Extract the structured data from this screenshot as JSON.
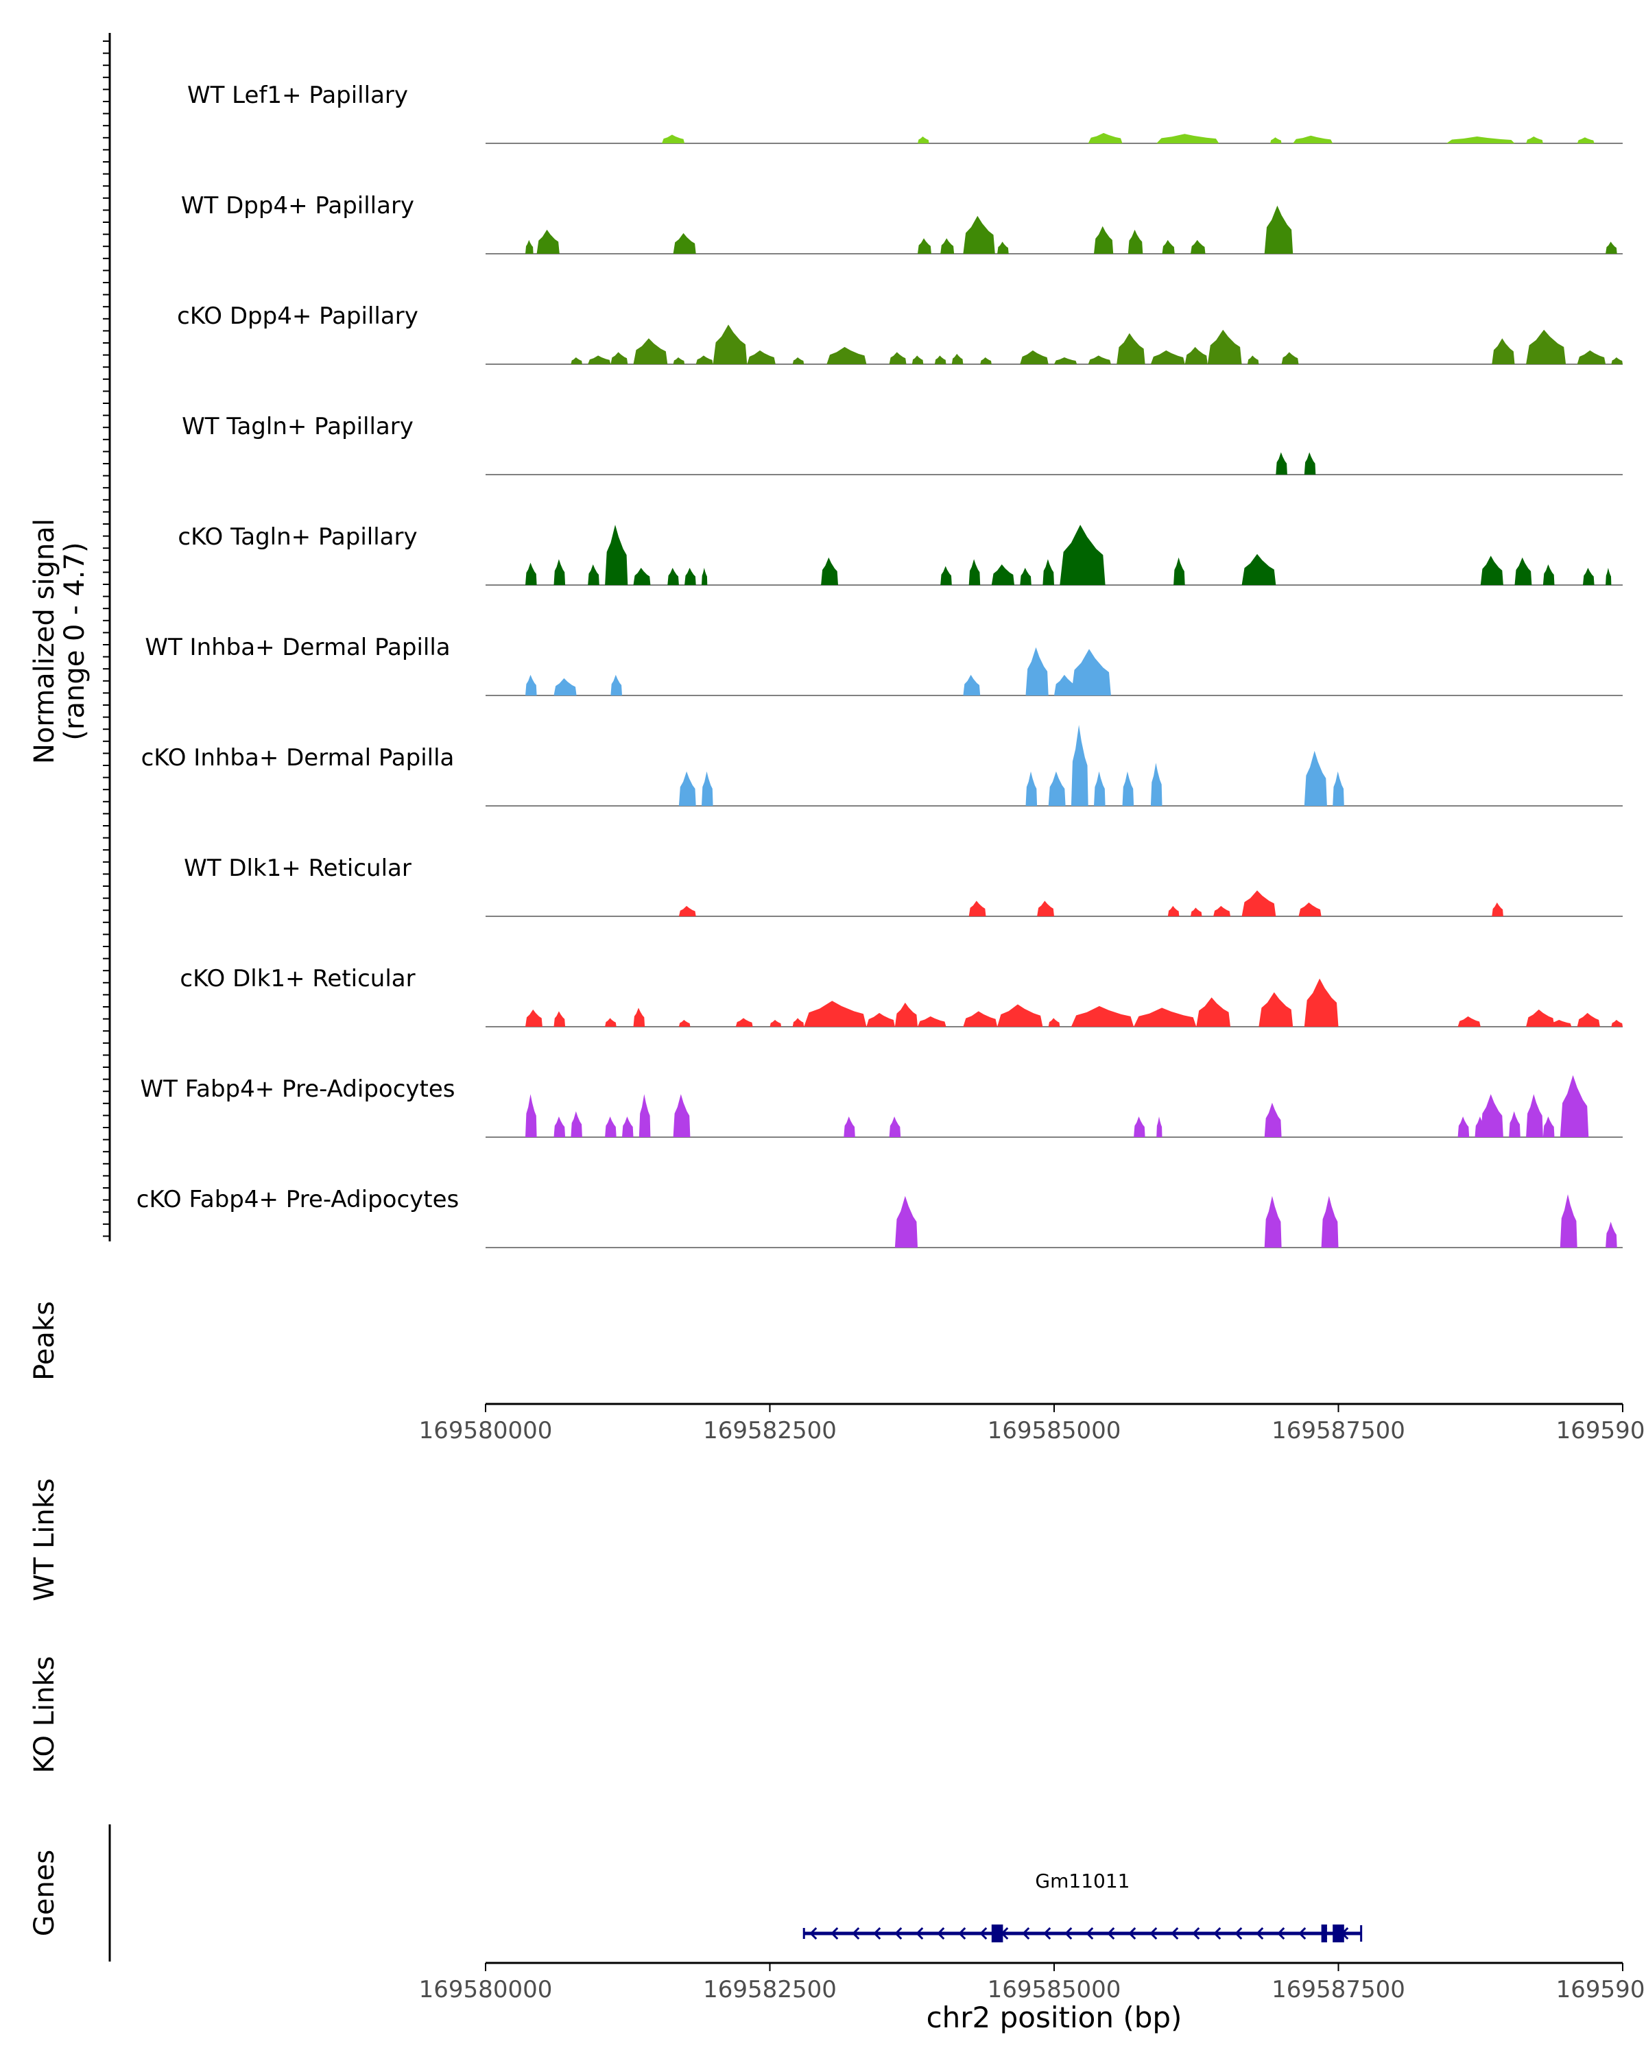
{
  "chart_data": {
    "type": "area",
    "title": "",
    "signal_axis_label_line1": "Normalized signal",
    "signal_axis_label_line2": "(range 0 - 4.7)",
    "signal_range": [
      0,
      4.7
    ],
    "xlabel": "chr2 position (bp)",
    "xlim": [
      169580000,
      169590000
    ],
    "x_ticks": [
      169580000,
      169582500,
      169585000,
      169587500,
      169590000
    ],
    "x_tick_labels": [
      "169580000",
      "169582500",
      "169585000",
      "169587500",
      "169590000"
    ],
    "tracks": [
      {
        "name": "WT Lef1+ Papillary",
        "color": "#7fd11b",
        "regions": [
          [
            169581550,
            169581750,
            0.5
          ],
          [
            169583800,
            169583900,
            0.4
          ],
          [
            169585300,
            169585600,
            0.6
          ],
          [
            169585900,
            169586450,
            0.55
          ],
          [
            169586900,
            169587000,
            0.35
          ],
          [
            169587100,
            169587450,
            0.45
          ],
          [
            169588450,
            169589050,
            0.4
          ],
          [
            169589150,
            169589300,
            0.4
          ],
          [
            169589600,
            169589750,
            0.35
          ]
        ]
      },
      {
        "name": "WT Dpp4+ Papillary",
        "color": "#3f8a06",
        "regions": [
          [
            169580350,
            169580420,
            0.8
          ],
          [
            169580450,
            169580650,
            1.4
          ],
          [
            169581650,
            169581850,
            1.2
          ],
          [
            169583800,
            169583920,
            0.9
          ],
          [
            169584000,
            169584120,
            0.9
          ],
          [
            169584200,
            169584480,
            2.2
          ],
          [
            169584500,
            169584600,
            0.7
          ],
          [
            169585350,
            169585520,
            1.6
          ],
          [
            169585650,
            169585780,
            1.4
          ],
          [
            169585950,
            169586060,
            0.8
          ],
          [
            169586200,
            169586330,
            0.8
          ],
          [
            169586850,
            169587100,
            2.8
          ],
          [
            169589850,
            169589950,
            0.7
          ]
        ]
      },
      {
        "name": "cKO Dpp4+ Papillary",
        "color": "#4b8a0a",
        "regions": [
          [
            169580750,
            169580850,
            0.4
          ],
          [
            169580900,
            169581100,
            0.5
          ],
          [
            169581100,
            169581250,
            0.7
          ],
          [
            169581300,
            169581600,
            1.5
          ],
          [
            169581650,
            169581750,
            0.4
          ],
          [
            169581850,
            169582000,
            0.5
          ],
          [
            169582000,
            169582300,
            2.3
          ],
          [
            169582300,
            169582550,
            0.8
          ],
          [
            169582700,
            169582800,
            0.4
          ],
          [
            169583000,
            169583350,
            1.0
          ],
          [
            169583550,
            169583700,
            0.7
          ],
          [
            169583750,
            169583850,
            0.5
          ],
          [
            169583950,
            169584050,
            0.5
          ],
          [
            169584100,
            169584200,
            0.6
          ],
          [
            169584350,
            169584450,
            0.4
          ],
          [
            169584700,
            169584950,
            0.8
          ],
          [
            169585000,
            169585200,
            0.4
          ],
          [
            169585300,
            169585500,
            0.5
          ],
          [
            169585550,
            169585800,
            1.8
          ],
          [
            169585850,
            169586150,
            0.8
          ],
          [
            169586150,
            169586350,
            1.0
          ],
          [
            169586350,
            169586650,
            2.0
          ],
          [
            169586700,
            169586800,
            0.5
          ],
          [
            169587000,
            169587150,
            0.7
          ],
          [
            169588850,
            169589050,
            1.5
          ],
          [
            169589150,
            169589500,
            2.0
          ],
          [
            169589600,
            169589850,
            0.8
          ],
          [
            169589900,
            169590000,
            0.4
          ]
        ]
      },
      {
        "name": "WT Tagln+ Papillary",
        "color": "#006400",
        "regions": [
          [
            169586950,
            169587050,
            1.3
          ],
          [
            169587200,
            169587300,
            1.3
          ]
        ]
      },
      {
        "name": "cKO Tagln+ Papillary",
        "color": "#006400",
        "regions": [
          [
            169580350,
            169580450,
            1.3
          ],
          [
            169580600,
            169580700,
            1.5
          ],
          [
            169580900,
            169581000,
            1.2
          ],
          [
            169581050,
            169581250,
            3.5
          ],
          [
            169581300,
            169581450,
            1.0
          ],
          [
            169581600,
            169581700,
            1.0
          ],
          [
            169581750,
            169581850,
            1.0
          ],
          [
            169581900,
            169581950,
            1.0
          ],
          [
            169582950,
            169583100,
            1.6
          ],
          [
            169584000,
            169584100,
            1.1
          ],
          [
            169584250,
            169584350,
            1.5
          ],
          [
            169584450,
            169584650,
            1.2
          ],
          [
            169584700,
            169584800,
            1.0
          ],
          [
            169584900,
            169585000,
            1.5
          ],
          [
            169585050,
            169585450,
            3.5
          ],
          [
            169586050,
            169586150,
            1.6
          ],
          [
            169586650,
            169586950,
            1.8
          ],
          [
            169588750,
            169588950,
            1.7
          ],
          [
            169589050,
            169589200,
            1.6
          ],
          [
            169589300,
            169589400,
            1.2
          ],
          [
            169589650,
            169589750,
            1.0
          ],
          [
            169589850,
            169589900,
            1.0
          ]
        ]
      },
      {
        "name": "WT Inhba+ Dermal Papilla",
        "color": "#5aa9e6",
        "regions": [
          [
            169580350,
            169580450,
            1.2
          ],
          [
            169580600,
            169580800,
            1.0
          ],
          [
            169581100,
            169581200,
            1.2
          ],
          [
            169584200,
            169584350,
            1.2
          ],
          [
            169584750,
            169584950,
            2.8
          ],
          [
            169585000,
            169585200,
            1.2
          ],
          [
            169585150,
            169585500,
            2.7
          ]
        ]
      },
      {
        "name": "cKO Inhba+ Dermal Papilla",
        "color": "#5aa9e6",
        "regions": [
          [
            169581700,
            169581850,
            2.0
          ],
          [
            169581900,
            169582000,
            2.0
          ],
          [
            169584750,
            169584850,
            2.0
          ],
          [
            169584950,
            169585100,
            2.0
          ],
          [
            169585150,
            169585300,
            4.7
          ],
          [
            169585350,
            169585450,
            2.0
          ],
          [
            169585600,
            169585700,
            2.0
          ],
          [
            169585850,
            169585950,
            2.5
          ],
          [
            169587200,
            169587400,
            3.2
          ],
          [
            169587450,
            169587550,
            2.0
          ]
        ]
      },
      {
        "name": "WT Dlk1+ Reticular",
        "color": "#ff3030",
        "regions": [
          [
            169581700,
            169581850,
            0.6
          ],
          [
            169584250,
            169584400,
            0.9
          ],
          [
            169584850,
            169585000,
            0.9
          ],
          [
            169586000,
            169586100,
            0.6
          ],
          [
            169586200,
            169586300,
            0.5
          ],
          [
            169586400,
            169586550,
            0.6
          ],
          [
            169586650,
            169586950,
            1.5
          ],
          [
            169587150,
            169587350,
            0.8
          ],
          [
            169588850,
            169588950,
            0.8
          ]
        ]
      },
      {
        "name": "cKO Dlk1+ Reticular",
        "color": "#ff3030",
        "regions": [
          [
            169580350,
            169580500,
            1.0
          ],
          [
            169580600,
            169580700,
            0.9
          ],
          [
            169581050,
            169581150,
            0.5
          ],
          [
            169581300,
            169581400,
            1.1
          ],
          [
            169581700,
            169581800,
            0.4
          ],
          [
            169582200,
            169582350,
            0.5
          ],
          [
            169582500,
            169582600,
            0.4
          ],
          [
            169582700,
            169582800,
            0.5
          ],
          [
            169582800,
            169583350,
            1.5
          ],
          [
            169583350,
            169583600,
            0.8
          ],
          [
            169583600,
            169583800,
            1.4
          ],
          [
            169583800,
            169584050,
            0.6
          ],
          [
            169584200,
            169584500,
            0.9
          ],
          [
            169584500,
            169584900,
            1.3
          ],
          [
            169584950,
            169585050,
            0.5
          ],
          [
            169585150,
            169585700,
            1.2
          ],
          [
            169585700,
            169586250,
            1.1
          ],
          [
            169586250,
            169586550,
            1.7
          ],
          [
            169586800,
            169587100,
            2.0
          ],
          [
            169587200,
            169587500,
            2.8
          ],
          [
            169588550,
            169588750,
            0.6
          ],
          [
            169589150,
            169589400,
            1.0
          ],
          [
            169589350,
            169589550,
            0.4
          ],
          [
            169589600,
            169589800,
            0.8
          ],
          [
            169589900,
            169590000,
            0.4
          ]
        ]
      },
      {
        "name": "WT Fabp4+ Pre-Adipocytes",
        "color": "#b33ee8",
        "regions": [
          [
            169580350,
            169580450,
            2.5
          ],
          [
            169580600,
            169580700,
            1.2
          ],
          [
            169580750,
            169580850,
            1.5
          ],
          [
            169581050,
            169581150,
            1.2
          ],
          [
            169581200,
            169581300,
            1.2
          ],
          [
            169581350,
            169581450,
            2.5
          ],
          [
            169581650,
            169581800,
            2.5
          ],
          [
            169583150,
            169583250,
            1.2
          ],
          [
            169583550,
            169583650,
            1.2
          ],
          [
            169585700,
            169585800,
            1.2
          ],
          [
            169585900,
            169585950,
            1.2
          ],
          [
            169586850,
            169587000,
            2.0
          ],
          [
            169588550,
            169588650,
            1.2
          ],
          [
            169588700,
            169588800,
            1.2
          ],
          [
            169588750,
            169588950,
            2.5
          ],
          [
            169589000,
            169589100,
            1.5
          ],
          [
            169589150,
            169589300,
            2.5
          ],
          [
            169589300,
            169589400,
            1.2
          ],
          [
            169589450,
            169589700,
            3.6
          ]
        ]
      },
      {
        "name": "cKO Fabp4+ Pre-Adipocytes",
        "color": "#b33ee8",
        "regions": [
          [
            169583600,
            169583800,
            3.0
          ],
          [
            169586850,
            169587000,
            3.0
          ],
          [
            169587350,
            169587500,
            3.0
          ],
          [
            169589450,
            169589600,
            3.1
          ],
          [
            169589850,
            169589950,
            1.5
          ]
        ]
      }
    ],
    "peaks_label": "Peaks",
    "wt_links_label": "WT Links",
    "ko_links_label": "KO Links",
    "genes_label": "Genes",
    "gene": {
      "name": "Gm11011",
      "start": 169582800,
      "end": 169587700,
      "strand": "-",
      "exons": [
        [
          169584450,
          169584550
        ],
        [
          169587350,
          169587400
        ],
        [
          169587450,
          169587550
        ]
      ]
    }
  }
}
